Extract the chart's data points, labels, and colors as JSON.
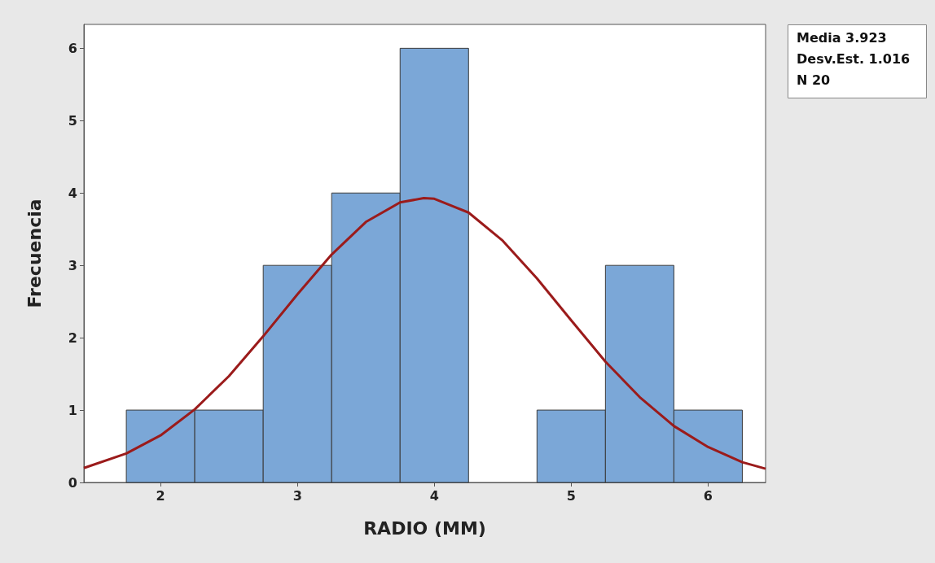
{
  "chart_data": {
    "type": "histogram",
    "xlabel": "RADIO (MM)",
    "ylabel": "Frecuencia",
    "bins": [
      1.75,
      2.25,
      2.75,
      3.25,
      3.75,
      4.25,
      4.75,
      5.25,
      5.75,
      6.25
    ],
    "values": [
      1,
      1,
      3,
      4,
      6,
      0,
      1,
      3,
      1
    ],
    "color": "#7ba7d7",
    "series": [
      {
        "type": "line",
        "color": "#9b1b1b",
        "x": [
          1.44,
          1.75,
          2.0,
          2.25,
          2.5,
          2.75,
          3.0,
          3.25,
          3.5,
          3.75,
          3.923,
          4.0,
          4.25,
          4.5,
          4.75,
          5.0,
          5.25,
          5.5,
          5.75,
          6.0,
          6.25,
          6.42
        ],
        "values": [
          0.2,
          0.4,
          0.65,
          1.01,
          1.47,
          2.02,
          2.6,
          3.15,
          3.6,
          3.87,
          3.93,
          3.92,
          3.73,
          3.34,
          2.82,
          2.24,
          1.67,
          1.18,
          0.78,
          0.49,
          0.28,
          0.19
        ]
      }
    ],
    "xlim": [
      1.44,
      6.42
    ],
    "xticks": [
      2,
      3,
      4,
      5,
      6
    ],
    "ylim": [
      0,
      6.33
    ],
    "yticks": [
      0,
      1,
      2,
      3,
      4,
      5,
      6
    ],
    "grid": false,
    "marker": "none",
    "annotations": [
      "Media 3.923",
      "Desv.Est. 1.016",
      "N 20"
    ]
  }
}
